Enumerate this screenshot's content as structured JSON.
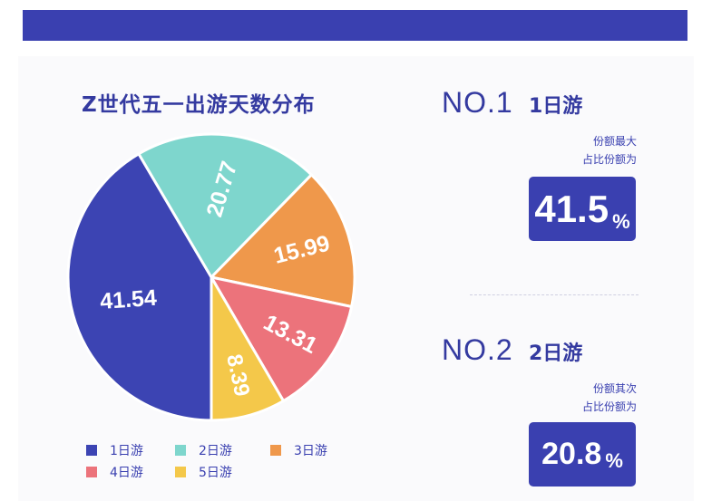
{
  "colors": {
    "brand": "#3a40b0",
    "slice_1": "#3c44b3",
    "slice_2": "#7ed6cd",
    "slice_3": "#ef984b",
    "slice_4": "#ec737b",
    "slice_5": "#f4c84a"
  },
  "chart_data": {
    "type": "pie",
    "title": "Z世代五一出游天数分布",
    "categories": [
      "1日游",
      "2日游",
      "3日游",
      "4日游",
      "5日游"
    ],
    "values": [
      41.54,
      20.77,
      15.99,
      13.31,
      8.39
    ],
    "data_labels": [
      "41.54",
      "20.77",
      "15.99",
      "13.31",
      "8.39"
    ],
    "legend_position": "bottom"
  },
  "ranks": [
    {
      "no": "NO.1",
      "name": "1日游",
      "desc_line1": "份额最大",
      "desc_line2": "占比份额为",
      "value": "41.5",
      "unit": "%"
    },
    {
      "no": "NO.2",
      "name": "2日游",
      "desc_line1": "份额其次",
      "desc_line2": "占比份额为",
      "value": "20.8",
      "unit": "%"
    }
  ]
}
